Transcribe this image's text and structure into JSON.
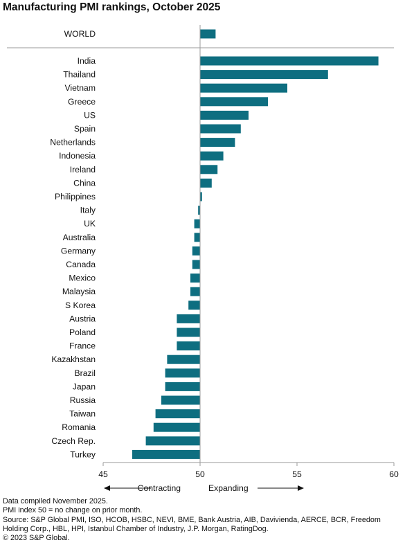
{
  "title": "Manufacturing PMI rankings, October 2025",
  "chart_data": {
    "type": "bar",
    "orientation": "horizontal",
    "baseline": 50,
    "xlim": [
      45,
      60
    ],
    "xticks": [
      "45",
      "50",
      "55",
      "60"
    ],
    "bar_color": "#0e6e80",
    "world": {
      "category": "WORLD",
      "value": 50.8
    },
    "categories": [
      "India",
      "Thailand",
      "Vietnam",
      "Greece",
      "US",
      "Spain",
      "Netherlands",
      "Indonesia",
      "Ireland",
      "China",
      "Philippines",
      "Italy",
      "UK",
      "Australia",
      "Germany",
      "Canada",
      "Mexico",
      "Malaysia",
      "S Korea",
      "Austria",
      "Poland",
      "France",
      "Kazakhstan",
      "Brazil",
      "Japan",
      "Russia",
      "Taiwan",
      "Romania",
      "Czech Rep.",
      "Turkey"
    ],
    "values": [
      59.2,
      56.6,
      54.5,
      53.5,
      52.5,
      52.1,
      51.8,
      51.2,
      50.9,
      50.6,
      50.1,
      49.9,
      49.7,
      49.7,
      49.6,
      49.6,
      49.5,
      49.5,
      49.4,
      48.8,
      48.8,
      48.8,
      48.3,
      48.2,
      48.2,
      48.0,
      47.7,
      47.6,
      47.2,
      46.5
    ],
    "direction_labels": {
      "left": "Contracting",
      "right": "Expanding"
    }
  },
  "footnotes": [
    "Data compiled November 2025.",
    "PMI index 50 = no change on prior month.",
    "Source: S&P Global PMI, ISO, HCOB, HSBC, NEVI, BME, Bank Austria, AIB, Davivienda, AERCE, BCR, Freedom Holding Corp., HBL, HPI, Istanbul Chamber of Industry, J.P. Morgan, RatingDog.",
    "© 2023 S&P Global."
  ]
}
